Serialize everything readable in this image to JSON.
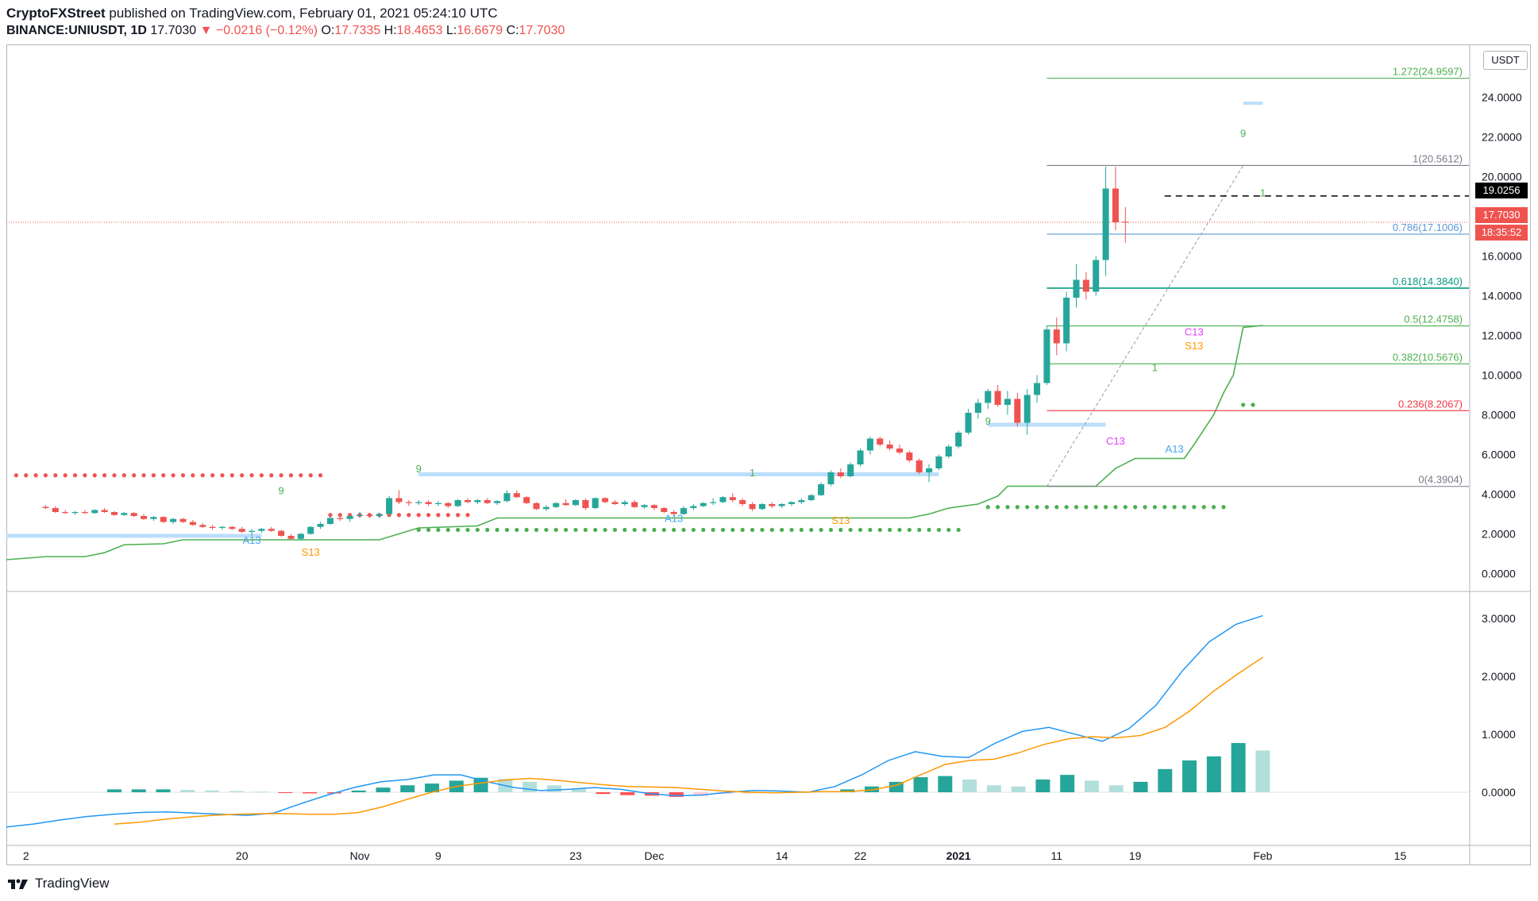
{
  "header": {
    "publisher": "CryptoFXStreet",
    "published_text": "published on TradingView.com, February 01, 2021 05:24:10 UTC",
    "symbol": "BINANCE:UNIUSDT, 1D",
    "last": "17.7030",
    "change": "▼ −0.0216 (−0.12%)",
    "o_label": "O:",
    "o": "17.7335",
    "h_label": "H:",
    "h": "18.4653",
    "l_label": "L:",
    "l": "16.6679",
    "c_label": "C:",
    "c": "17.7030"
  },
  "currency_button": "USDT",
  "price_flags": {
    "marker": "19.0256",
    "last": "17.7030",
    "countdown": "18:35:52"
  },
  "footer": {
    "brand": "TradingView"
  },
  "colors": {
    "up": "#26a69a",
    "down": "#ef5350",
    "macd": "#2196f3",
    "signal": "#ff9800",
    "fib_grey": "#787b86",
    "fib_blue": "#5b9bd5",
    "fib_teal": "#089981",
    "fib_green": "#4caf50",
    "fib_red": "#f23645"
  },
  "chart_data": [
    {
      "type": "candlestick",
      "title": "BINANCE:UNIUSDT, 1D",
      "ylim": [
        -0.7,
        26.5
      ],
      "y_ticks": [
        "0.0000",
        "2.0000",
        "4.0000",
        "6.0000",
        "8.0000",
        "10.0000",
        "12.0000",
        "14.0000",
        "16.0000",
        "18.0000",
        "20.0000",
        "22.0000",
        "24.0000"
      ],
      "x_ticks": [
        {
          "label": "2",
          "day": -2
        },
        {
          "label": "20",
          "day": 20
        },
        {
          "label": "Nov",
          "day": 32
        },
        {
          "label": "9",
          "day": 40
        },
        {
          "label": "23",
          "day": 54
        },
        {
          "label": "Dec",
          "day": 62
        },
        {
          "label": "14",
          "day": 75
        },
        {
          "label": "22",
          "day": 83
        },
        {
          "label": "2021",
          "day": 93
        },
        {
          "label": "11",
          "day": 103
        },
        {
          "label": "19",
          "day": 111
        },
        {
          "label": "Feb",
          "day": 124
        },
        {
          "label": "15",
          "day": 138
        }
      ],
      "day_origin": "Oct 1, 2020",
      "candles_ohlc_from_oct1": [
        [
          3.36,
          3.45,
          3.25,
          3.3
        ],
        [
          3.3,
          3.4,
          3.05,
          3.1
        ],
        [
          3.1,
          3.2,
          3.0,
          3.05
        ],
        [
          3.05,
          3.15,
          2.95,
          3.1
        ],
        [
          3.1,
          3.2,
          3.0,
          3.05
        ],
        [
          3.05,
          3.25,
          3.0,
          3.2
        ],
        [
          3.2,
          3.3,
          3.05,
          3.1
        ],
        [
          3.1,
          3.15,
          2.9,
          2.95
        ],
        [
          2.95,
          3.1,
          2.9,
          3.05
        ],
        [
          3.05,
          3.1,
          2.85,
          2.9
        ],
        [
          2.9,
          3.0,
          2.7,
          2.75
        ],
        [
          2.75,
          2.9,
          2.65,
          2.85
        ],
        [
          2.85,
          2.9,
          2.55,
          2.6
        ],
        [
          2.6,
          2.8,
          2.5,
          2.75
        ],
        [
          2.75,
          2.8,
          2.55,
          2.6
        ],
        [
          2.6,
          2.7,
          2.4,
          2.45
        ],
        [
          2.45,
          2.55,
          2.3,
          2.35
        ],
        [
          2.35,
          2.45,
          2.2,
          2.3
        ],
        [
          2.3,
          2.4,
          2.2,
          2.35
        ],
        [
          2.35,
          2.4,
          2.2,
          2.25
        ],
        [
          2.25,
          2.35,
          2.05,
          2.1
        ],
        [
          2.1,
          2.25,
          1.9,
          2.15
        ],
        [
          2.15,
          2.3,
          2.05,
          2.25
        ],
        [
          2.25,
          2.35,
          2.1,
          2.15
        ],
        [
          2.15,
          2.2,
          1.85,
          1.9
        ],
        [
          1.9,
          2.0,
          1.7,
          1.75
        ],
        [
          1.75,
          2.05,
          1.65,
          2.0
        ],
        [
          2.0,
          2.4,
          1.95,
          2.35
        ],
        [
          2.35,
          2.6,
          2.25,
          2.5
        ],
        [
          2.5,
          2.85,
          2.45,
          2.8
        ],
        [
          2.8,
          3.0,
          2.65,
          2.75
        ],
        [
          2.75,
          2.95,
          2.6,
          2.9
        ],
        [
          2.9,
          3.1,
          2.8,
          2.95
        ],
        [
          2.95,
          3.05,
          2.8,
          2.9
        ],
        [
          2.9,
          3.05,
          2.8,
          3.0
        ],
        [
          3.0,
          3.9,
          2.95,
          3.8
        ],
        [
          3.8,
          4.2,
          3.5,
          3.6
        ],
        [
          3.6,
          3.7,
          3.4,
          3.55
        ],
        [
          3.55,
          3.7,
          3.45,
          3.6
        ],
        [
          3.6,
          3.7,
          3.4,
          3.5
        ],
        [
          3.5,
          3.65,
          3.4,
          3.55
        ],
        [
          3.55,
          3.6,
          3.3,
          3.4
        ],
        [
          3.4,
          3.75,
          3.35,
          3.7
        ],
        [
          3.7,
          3.8,
          3.55,
          3.6
        ],
        [
          3.6,
          3.75,
          3.5,
          3.7
        ],
        [
          3.7,
          3.8,
          3.5,
          3.55
        ],
        [
          3.55,
          3.7,
          3.45,
          3.65
        ],
        [
          3.65,
          4.2,
          3.6,
          4.05
        ],
        [
          4.05,
          4.2,
          3.8,
          3.85
        ],
        [
          3.85,
          3.9,
          3.5,
          3.55
        ],
        [
          3.55,
          3.6,
          3.2,
          3.25
        ],
        [
          3.25,
          3.45,
          3.15,
          3.35
        ],
        [
          3.35,
          3.6,
          3.3,
          3.55
        ],
        [
          3.55,
          3.75,
          3.4,
          3.45
        ],
        [
          3.45,
          3.75,
          3.4,
          3.7
        ],
        [
          3.7,
          3.8,
          3.2,
          3.3
        ],
        [
          3.3,
          3.85,
          3.25,
          3.8
        ],
        [
          3.8,
          3.85,
          3.55,
          3.6
        ],
        [
          3.6,
          3.7,
          3.45,
          3.5
        ],
        [
          3.5,
          3.7,
          3.4,
          3.6
        ],
        [
          3.6,
          3.7,
          3.3,
          3.35
        ],
        [
          3.35,
          3.5,
          3.25,
          3.45
        ],
        [
          3.45,
          3.5,
          3.2,
          3.3
        ],
        [
          3.3,
          3.35,
          3.05,
          3.1
        ],
        [
          3.1,
          3.2,
          2.95,
          3.0
        ],
        [
          3.0,
          3.4,
          2.95,
          3.3
        ],
        [
          3.3,
          3.5,
          3.2,
          3.4
        ],
        [
          3.4,
          3.6,
          3.35,
          3.55
        ],
        [
          3.55,
          3.8,
          3.45,
          3.6
        ],
        [
          3.6,
          3.9,
          3.55,
          3.85
        ],
        [
          3.85,
          4.05,
          3.6,
          3.7
        ],
        [
          3.7,
          3.8,
          3.4,
          3.5
        ],
        [
          3.5,
          3.6,
          3.15,
          3.25
        ],
        [
          3.25,
          3.55,
          3.2,
          3.5
        ],
        [
          3.5,
          3.6,
          3.3,
          3.4
        ],
        [
          3.4,
          3.55,
          3.3,
          3.5
        ],
        [
          3.5,
          3.65,
          3.4,
          3.6
        ],
        [
          3.6,
          3.8,
          3.5,
          3.7
        ],
        [
          3.7,
          4.0,
          3.65,
          3.95
        ],
        [
          3.95,
          4.6,
          3.9,
          4.5
        ],
        [
          4.5,
          5.2,
          4.4,
          5.1
        ],
        [
          5.1,
          5.3,
          4.8,
          4.9
        ],
        [
          4.9,
          5.6,
          4.85,
          5.5
        ],
        [
          5.5,
          6.3,
          5.4,
          6.2
        ],
        [
          6.2,
          6.9,
          6.0,
          6.8
        ],
        [
          6.8,
          6.9,
          6.4,
          6.5
        ],
        [
          6.5,
          6.7,
          6.2,
          6.3
        ],
        [
          6.3,
          6.5,
          6.0,
          6.1
        ],
        [
          6.1,
          6.2,
          5.6,
          5.7
        ],
        [
          5.7,
          5.8,
          5.0,
          5.1
        ],
        [
          5.1,
          5.5,
          4.6,
          5.3
        ],
        [
          5.3,
          6.0,
          5.2,
          5.9
        ],
        [
          5.9,
          6.5,
          5.8,
          6.4
        ],
        [
          6.4,
          7.2,
          6.3,
          7.1
        ],
        [
          7.1,
          8.3,
          7.0,
          8.1
        ],
        [
          8.1,
          8.8,
          7.8,
          8.6
        ],
        [
          8.6,
          9.3,
          8.3,
          9.2
        ],
        [
          9.2,
          9.5,
          8.4,
          8.5
        ],
        [
          8.5,
          9.2,
          8.0,
          8.8
        ],
        [
          8.8,
          9.1,
          7.4,
          7.6
        ],
        [
          7.6,
          9.3,
          7.0,
          9.0
        ],
        [
          9.0,
          10.0,
          8.6,
          9.6
        ],
        [
          9.6,
          12.5,
          9.5,
          12.3
        ],
        [
          12.3,
          12.9,
          11.0,
          11.6
        ],
        [
          11.6,
          14.2,
          11.2,
          13.9
        ],
        [
          13.9,
          15.6,
          13.4,
          14.8
        ],
        [
          14.8,
          15.2,
          13.8,
          14.2
        ],
        [
          14.2,
          16.0,
          14.0,
          15.8
        ],
        [
          15.8,
          20.5,
          15.0,
          19.4
        ],
        [
          19.4,
          20.5,
          17.3,
          17.7
        ],
        [
          17.73,
          18.47,
          16.67,
          17.7
        ]
      ],
      "fib_levels": [
        {
          "ratio": "1.272",
          "value": 24.9597,
          "text": "1.272(24.9597)"
        },
        {
          "ratio": "1",
          "value": 20.5612,
          "text": "1(20.5612)"
        },
        {
          "ratio": "0.786",
          "value": 17.1006,
          "text": "0.786(17.1006)"
        },
        {
          "ratio": "0.618",
          "value": 14.384,
          "text": "0.618(14.3840)"
        },
        {
          "ratio": "0.5",
          "value": 12.4758,
          "text": "0.5(12.4758)"
        },
        {
          "ratio": "0.382",
          "value": 10.5676,
          "text": "0.382(10.5676)"
        },
        {
          "ratio": "0.236",
          "value": 8.2067,
          "text": "0.236(8.2067)"
        },
        {
          "ratio": "0",
          "value": 4.3904,
          "text": "0(4.3904)"
        }
      ],
      "horizontal_marker": 19.0256,
      "td_labels": [
        {
          "text": "A13",
          "day": 21,
          "price": 1.5
        },
        {
          "text": "S13",
          "day": 27,
          "price": 0.9
        },
        {
          "text": "A13",
          "day": 64,
          "price": 2.6
        },
        {
          "text": "S13",
          "day": 81,
          "price": 2.5
        },
        {
          "text": "C13",
          "day": 109,
          "price": 6.5
        },
        {
          "text": "A13",
          "day": 115,
          "price": 6.1
        },
        {
          "text": "C13",
          "day": 117,
          "price": 12.0
        },
        {
          "text": "S13",
          "day": 117,
          "price": 11.3
        },
        {
          "text": "9",
          "day": 38,
          "price": 5.1
        },
        {
          "text": "9",
          "day": 24,
          "price": 4.0
        },
        {
          "text": "1",
          "day": 72,
          "price": 4.9
        },
        {
          "text": "9",
          "day": 96,
          "price": 7.5
        },
        {
          "text": "1",
          "day": 113,
          "price": 10.2
        },
        {
          "text": "9",
          "day": 122,
          "price": 22.0
        },
        {
          "text": "1",
          "day": 124,
          "price": 19.0
        }
      ]
    },
    {
      "type": "line",
      "title": "MACD",
      "ylim": [
        -0.85,
        3.4
      ],
      "y_ticks": [
        "0.0000",
        "1.0000",
        "2.0000",
        "3.0000"
      ],
      "series": [
        {
          "values": [
            -0.6,
            -0.55,
            -0.48,
            -0.42,
            -0.38,
            -0.35,
            -0.34,
            -0.36,
            -0.38,
            -0.4,
            -0.36,
            -0.2,
            -0.05,
            0.08,
            0.18,
            0.22,
            0.3,
            0.3,
            0.18,
            0.08,
            0.03,
            0.05,
            0.08,
            0.05,
            -0.02,
            -0.06,
            -0.05,
            0.0,
            0.03,
            0.02,
            0.0,
            0.1,
            0.3,
            0.55,
            0.7,
            0.62,
            0.6,
            0.85,
            1.05,
            1.12,
            1.0,
            0.88,
            1.1,
            1.5,
            2.1,
            2.6,
            2.9,
            3.05
          ]
        },
        {
          "values": [
            -0.55,
            -0.52,
            -0.47,
            -0.43,
            -0.4,
            -0.38,
            -0.37,
            -0.37,
            -0.38,
            -0.38,
            -0.35,
            -0.25,
            -0.12,
            0.0,
            0.1,
            0.16,
            0.21,
            0.24,
            0.21,
            0.17,
            0.13,
            0.1,
            0.09,
            0.08,
            0.05,
            0.02,
            0.0,
            -0.01,
            0.0,
            0.01,
            0.01,
            0.04,
            0.12,
            0.3,
            0.48,
            0.55,
            0.57,
            0.68,
            0.82,
            0.92,
            0.96,
            0.94,
            0.98,
            1.12,
            1.4,
            1.75,
            2.05,
            2.33
          ]
        }
      ],
      "histogram": [
        0.05,
        0.05,
        0.05,
        0.04,
        0.03,
        0.02,
        0.01,
        -0.01,
        -0.02,
        -0.02,
        0.03,
        0.08,
        0.12,
        0.15,
        0.2,
        0.25,
        0.23,
        0.18,
        0.12,
        0.06,
        -0.03,
        -0.05,
        -0.06,
        -0.08,
        -0.06,
        -0.03,
        -0.02,
        -0.01,
        0.01,
        0.02,
        0.05,
        0.1,
        0.18,
        0.26,
        0.28,
        0.22,
        0.12,
        0.1,
        0.22,
        0.3,
        0.2,
        0.12,
        0.18,
        0.4,
        0.55,
        0.62,
        0.85,
        0.72
      ]
    }
  ]
}
